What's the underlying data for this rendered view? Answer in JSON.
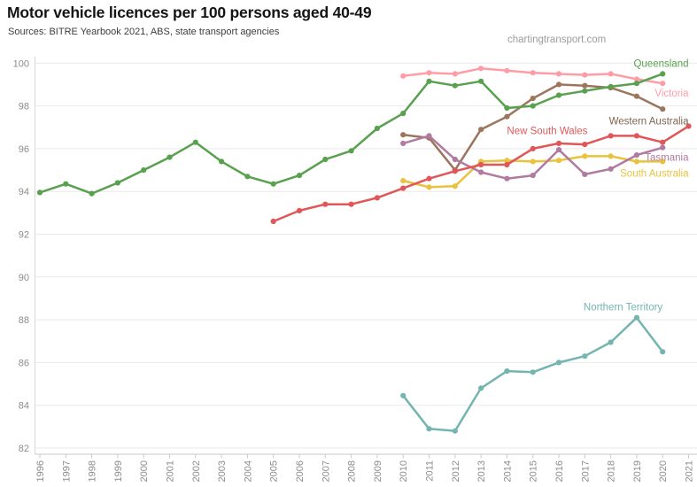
{
  "chart_data": {
    "type": "line",
    "title": "Motor vehicle licences per 100 persons aged 40-49",
    "subtitle": "Sources: BITRE Yearbook 2021, ABS, state transport agencies",
    "watermark": "chartingtransport.com",
    "x_range": [
      1996,
      2021
    ],
    "ylim": [
      82,
      100
    ],
    "grid": true,
    "legend_position": "end-of-line labels",
    "y_ticks": [
      100,
      98,
      96,
      94,
      92,
      90,
      88,
      86,
      84,
      82
    ],
    "x_ticks": [
      1996,
      1997,
      1998,
      1999,
      2000,
      2001,
      2002,
      2003,
      2004,
      2005,
      2006,
      2007,
      2008,
      2009,
      2010,
      2011,
      2012,
      2013,
      2014,
      2015,
      2016,
      2017,
      2018,
      2019,
      2020,
      2021
    ],
    "series": [
      {
        "name": "Victoria",
        "color": "#ff9da7",
        "start_year": 2010,
        "values": [
          99.4,
          99.55,
          99.5,
          99.75,
          99.65,
          99.55,
          99.5,
          99.45,
          99.5,
          99.25,
          99.05
        ],
        "label": {
          "year": 2021,
          "value": 98.6,
          "anchor": "end"
        }
      },
      {
        "name": "Western Australia",
        "color": "#9c755f",
        "label_color": "#7e6450",
        "start_year": 2010,
        "values": [
          96.65,
          96.5,
          95.0,
          96.9,
          97.5,
          98.35,
          99.0,
          98.95,
          98.85,
          98.45,
          97.85
        ],
        "label": {
          "year": 2021,
          "value": 97.3,
          "anchor": "end"
        }
      },
      {
        "name": "South Australia",
        "color": "#e8c33d",
        "start_year": 2010,
        "values": [
          94.5,
          94.2,
          94.25,
          95.4,
          95.45,
          95.4,
          95.45,
          95.65,
          95.65,
          95.4,
          95.4
        ],
        "label": {
          "year": 2021,
          "value": 94.85,
          "anchor": "end"
        }
      },
      {
        "name": "Tasmania",
        "color": "#b07aa1",
        "start_year": 2010,
        "values": [
          96.25,
          96.6,
          95.5,
          94.9,
          94.6,
          94.75,
          95.95,
          94.8,
          95.05,
          95.7,
          96.05
        ],
        "label": {
          "year": 2021,
          "value": 95.6,
          "anchor": "end"
        }
      },
      {
        "name": "New South Wales",
        "color": "#e15759",
        "start_year": 2005,
        "values": [
          92.6,
          93.1,
          93.4,
          93.4,
          93.7,
          94.15,
          94.6,
          94.95,
          95.25,
          95.25,
          96.0,
          96.25,
          96.2,
          96.6,
          96.6,
          96.3,
          97.05
        ],
        "label": {
          "year": 2014,
          "value": 96.85,
          "anchor": "start"
        }
      },
      {
        "name": "Queensland",
        "color": "#59a14f",
        "start_year": 1996,
        "values": [
          93.95,
          94.35,
          93.9,
          94.4,
          95.0,
          95.6,
          96.3,
          95.4,
          94.7,
          94.35,
          94.75,
          95.5,
          95.9,
          96.95,
          97.65,
          99.15,
          98.95,
          99.15,
          97.9,
          98.0,
          98.5,
          98.7,
          98.9,
          99.05,
          99.5
        ],
        "label": {
          "year": 2021,
          "value": 100.0,
          "anchor": "end"
        }
      },
      {
        "name": "Northern Territory",
        "color": "#74b5b0",
        "start_year": 2010,
        "values": [
          84.45,
          82.9,
          82.8,
          84.8,
          85.6,
          85.55,
          86.0,
          86.3,
          86.95,
          88.1,
          86.5
        ],
        "label": {
          "year": 2020,
          "value": 88.6,
          "anchor": "end"
        }
      }
    ]
  }
}
